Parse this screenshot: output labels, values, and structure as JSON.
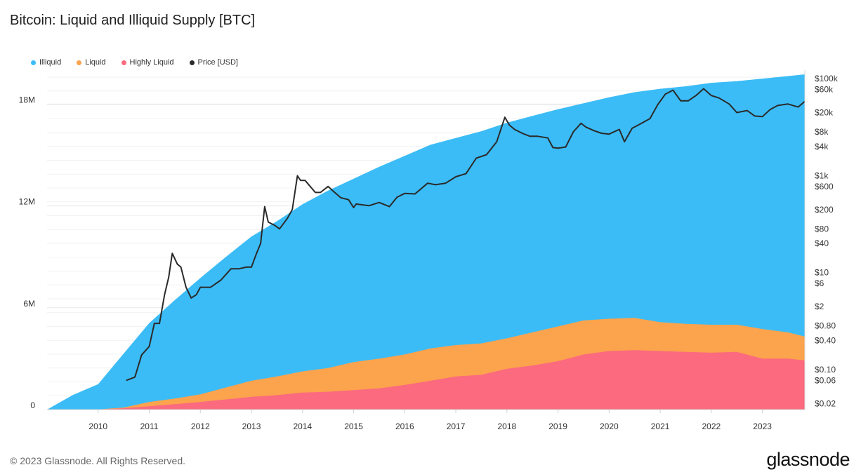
{
  "header": {
    "title": "Bitcoin: Liquid and Illiquid Supply [BTC]"
  },
  "footer": {
    "copyright": "© 2023 Glassnode. All Rights Reserved.",
    "brand": "glassnode"
  },
  "colors": {
    "illiquid": "#3bbcf6",
    "liquid": "#fca34e",
    "highly_liquid": "#fb6a7e",
    "price": "#2a2a2a",
    "grid": "#e8e8e8"
  },
  "chart_data": {
    "type": "area",
    "title": "Bitcoin: Liquid and Illiquid Supply [BTC]",
    "legend_position": "top-left",
    "grid": true,
    "x_range": [
      "2009-01-03",
      "2023-10-31"
    ],
    "x_ticks": [
      "2010",
      "2011",
      "2012",
      "2013",
      "2014",
      "2015",
      "2016",
      "2017",
      "2018",
      "2019",
      "2020",
      "2021",
      "2022",
      "2023"
    ],
    "y_left": {
      "ylim": [
        0,
        20000000
      ],
      "ticks": [
        {
          "value": 0,
          "label": "0"
        },
        {
          "value": 6000000,
          "label": "6M"
        },
        {
          "value": 12000000,
          "label": "12M"
        },
        {
          "value": 18000000,
          "label": "18M"
        }
      ]
    },
    "y_right": {
      "scale": "log",
      "ylim": [
        0.015,
        150000
      ],
      "ticks": [
        {
          "value": 100000,
          "label": "$100k"
        },
        {
          "value": 60000,
          "label": "$60k"
        },
        {
          "value": 20000,
          "label": "$20k"
        },
        {
          "value": 8000,
          "label": "$8k"
        },
        {
          "value": 4000,
          "label": "$4k"
        },
        {
          "value": 1000,
          "label": "$1k"
        },
        {
          "value": 600,
          "label": "$600"
        },
        {
          "value": 200,
          "label": "$200"
        },
        {
          "value": 80,
          "label": "$80"
        },
        {
          "value": 40,
          "label": "$40"
        },
        {
          "value": 10,
          "label": "$10"
        },
        {
          "value": 6,
          "label": "$6"
        },
        {
          "value": 2,
          "label": "$2"
        },
        {
          "value": 0.8,
          "label": "$0.80"
        },
        {
          "value": 0.4,
          "label": "$0.40"
        },
        {
          "value": 0.1,
          "label": "$0.10"
        },
        {
          "value": 0.06,
          "label": "$0.06"
        },
        {
          "value": 0.02,
          "label": "$0.02"
        }
      ]
    },
    "x": [
      2009.0,
      2009.5,
      2010.0,
      2010.5,
      2011.0,
      2011.5,
      2012.0,
      2012.5,
      2013.0,
      2013.5,
      2014.0,
      2014.5,
      2015.0,
      2015.5,
      2016.0,
      2016.5,
      2017.0,
      2017.5,
      2018.0,
      2018.5,
      2019.0,
      2019.5,
      2020.0,
      2020.5,
      2021.0,
      2021.5,
      2022.0,
      2022.5,
      2023.0,
      2023.5,
      2023.83
    ],
    "series": [
      {
        "name": "Highly Liquid",
        "key": "highly_liquid",
        "values": [
          0,
          0,
          5000,
          80000,
          200000,
          320000,
          450000,
          600000,
          750000,
          850000,
          1000000,
          1050000,
          1150000,
          1250000,
          1450000,
          1700000,
          1950000,
          2050000,
          2400000,
          2600000,
          2850000,
          3250000,
          3450000,
          3500000,
          3450000,
          3400000,
          3350000,
          3400000,
          3000000,
          3000000,
          2900000
        ]
      },
      {
        "name": "Liquid",
        "key": "liquid",
        "values": [
          0,
          0,
          10000,
          120000,
          450000,
          650000,
          900000,
          1300000,
          1700000,
          1950000,
          2250000,
          2450000,
          2800000,
          3000000,
          3250000,
          3600000,
          3800000,
          3900000,
          4200000,
          4550000,
          4900000,
          5250000,
          5350000,
          5400000,
          5150000,
          5050000,
          5000000,
          5000000,
          4750000,
          4550000,
          4300000
        ]
      },
      {
        "name": "Illiquid",
        "key": "illiquid",
        "values": [
          0,
          850000,
          1500000,
          3300000,
          5100000,
          6450000,
          7750000,
          9000000,
          10200000,
          11100000,
          12100000,
          12900000,
          13600000,
          14300000,
          14950000,
          15600000,
          16000000,
          16400000,
          16900000,
          17300000,
          17700000,
          18050000,
          18400000,
          18700000,
          18900000,
          19050000,
          19250000,
          19350000,
          19500000,
          19650000,
          19750000
        ]
      }
    ],
    "price_series": {
      "name": "Price [USD]",
      "key": "price",
      "dates": [
        2010.55,
        2010.72,
        2010.85,
        2011.0,
        2011.1,
        2011.2,
        2011.3,
        2011.38,
        2011.45,
        2011.55,
        2011.62,
        2011.72,
        2011.82,
        2011.92,
        2012.0,
        2012.2,
        2012.4,
        2012.6,
        2012.75,
        2012.9,
        2013.0,
        2013.1,
        2013.18,
        2013.26,
        2013.33,
        2013.45,
        2013.55,
        2013.7,
        2013.8,
        2013.9,
        2013.96,
        2014.05,
        2014.15,
        2014.25,
        2014.35,
        2014.5,
        2014.6,
        2014.75,
        2014.9,
        2015.0,
        2015.05,
        2015.3,
        2015.5,
        2015.7,
        2015.85,
        2016.0,
        2016.2,
        2016.45,
        2016.6,
        2016.8,
        2017.0,
        2017.2,
        2017.4,
        2017.6,
        2017.8,
        2017.96,
        2018.05,
        2018.15,
        2018.3,
        2018.45,
        2018.6,
        2018.8,
        2018.9,
        2019.0,
        2019.15,
        2019.3,
        2019.45,
        2019.55,
        2019.7,
        2019.85,
        2020.0,
        2020.2,
        2020.3,
        2020.45,
        2020.6,
        2020.8,
        2020.95,
        2021.1,
        2021.25,
        2021.4,
        2021.55,
        2021.7,
        2021.85,
        2022.0,
        2022.15,
        2022.35,
        2022.5,
        2022.7,
        2022.85,
        2023.0,
        2023.15,
        2023.3,
        2023.5,
        2023.7,
        2023.83
      ],
      "values": [
        0.06,
        0.07,
        0.2,
        0.3,
        0.9,
        0.9,
        3.5,
        8,
        25,
        15,
        13,
        5,
        3,
        3.5,
        5,
        5,
        7,
        12,
        12,
        13,
        13,
        25,
        40,
        230,
        110,
        95,
        80,
        130,
        200,
        1000,
        800,
        800,
        600,
        450,
        450,
        600,
        480,
        350,
        320,
        220,
        260,
        240,
        280,
        230,
        360,
        430,
        420,
        700,
        650,
        700,
        950,
        1100,
        2300,
        2700,
        5000,
        16000,
        11000,
        9000,
        7500,
        6500,
        6500,
        6000,
        3800,
        3700,
        3900,
        8000,
        12000,
        10000,
        8500,
        7500,
        7200,
        9000,
        5000,
        9500,
        11500,
        15000,
        29000,
        48000,
        58000,
        35000,
        35000,
        45000,
        62000,
        45000,
        40000,
        30000,
        20000,
        22000,
        17000,
        16500,
        23000,
        28000,
        30000,
        26000,
        34000
      ]
    }
  }
}
